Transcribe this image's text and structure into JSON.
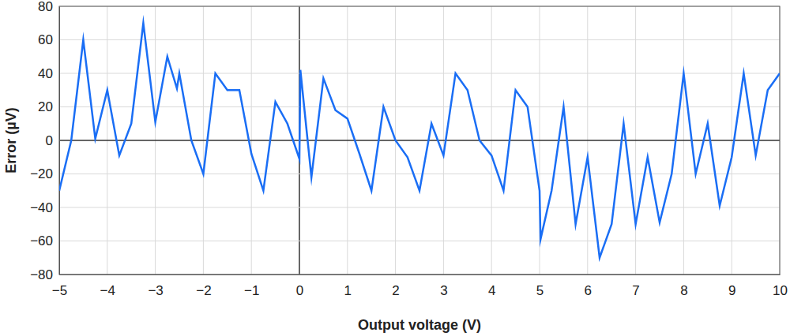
{
  "chart_data": {
    "type": "line",
    "x_label": "Output voltage (V)",
    "y_label": "Error (µV)",
    "grid": true,
    "xlim": [
      -5,
      10
    ],
    "ylim": [
      -80,
      80
    ],
    "xticks": [
      {
        "value": -5,
        "label": "−5"
      },
      {
        "value": -4,
        "label": "−4"
      },
      {
        "value": -3,
        "label": "−3"
      },
      {
        "value": -2,
        "label": "−2"
      },
      {
        "value": -1,
        "label": "−1"
      },
      0,
      1,
      2,
      3,
      4,
      5,
      6,
      7,
      8,
      9,
      10
    ],
    "yticks": [
      {
        "value": -80,
        "label": "−80"
      },
      {
        "value": -60,
        "label": "−60"
      },
      {
        "value": -40,
        "label": "−40"
      },
      {
        "value": -20,
        "label": "−20"
      },
      0,
      20,
      40,
      60,
      80
    ],
    "x": [
      -5,
      -4.75,
      -4.5,
      -4.25,
      -4,
      -3.75,
      -3.5,
      -3.25,
      -3,
      -2.75,
      -2.55,
      -2.5,
      -2.25,
      -2,
      -1.75,
      -1.5,
      -1.25,
      -1,
      -0.75,
      -0.5,
      -0.25,
      0,
      0.02,
      0.25,
      0.5,
      0.75,
      1,
      1.25,
      1.5,
      1.75,
      2,
      2.25,
      2.5,
      2.75,
      3,
      3.25,
      3.5,
      3.75,
      4,
      4.25,
      4.5,
      4.75,
      5,
      5.02,
      5.25,
      5.5,
      5.75,
      6,
      6.25,
      6.5,
      6.75,
      7,
      7.25,
      7.5,
      7.75,
      8,
      8.25,
      8.5,
      8.75,
      9,
      9.25,
      9.5,
      9.75,
      10
    ],
    "series": [
      {
        "name": "Error",
        "color": "#1a6ef5",
        "values": [
          -30,
          0,
          60,
          1,
          30,
          -9,
          10,
          70,
          11,
          50,
          31,
          40,
          0,
          -20,
          40,
          30,
          30,
          -8,
          -30,
          23,
          10,
          -11,
          42,
          -22,
          37,
          18,
          13,
          -8,
          -30,
          20,
          0,
          -10,
          -30,
          10,
          -9,
          40,
          30,
          0,
          -9,
          -30,
          30,
          20,
          -30,
          -59,
          -30,
          20,
          -50,
          -10,
          -70,
          -50,
          10,
          -50,
          -10,
          -49,
          -20,
          40,
          -20,
          10,
          -39,
          -10,
          40,
          -9,
          30,
          40
        ]
      }
    ]
  }
}
